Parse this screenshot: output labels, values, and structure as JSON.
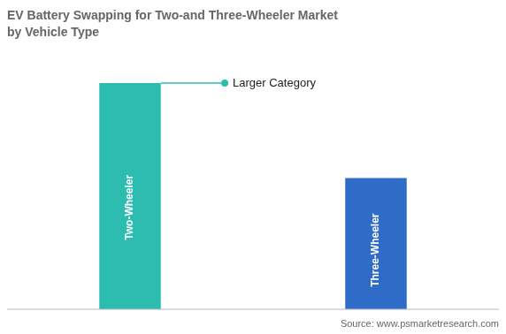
{
  "chart_data": {
    "type": "bar",
    "title": "EV Battery Swapping for Two-and Three-Wheeler Market",
    "subtitle": "by Vehicle Type",
    "categories": [
      "Two-Wheeler",
      "Three-Wheeler"
    ],
    "values": [
      100,
      58
    ],
    "colors": [
      "#2dbdb0",
      "#2e6cc7"
    ],
    "ylim": [
      0,
      115
    ],
    "grid": false,
    "legend": false,
    "tick_labels": false,
    "annotations": [
      {
        "text": "Larger Category",
        "category": "Two-Wheeler"
      }
    ],
    "source": "Source: www.psmarketresearch.com"
  }
}
